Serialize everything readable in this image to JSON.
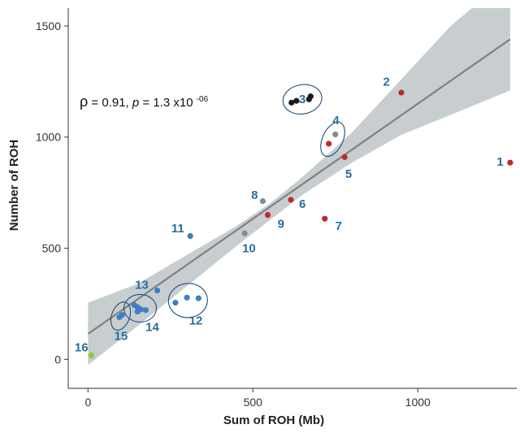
{
  "chart_data": {
    "type": "scatter",
    "xlabel": "Sum of ROH (Mb)",
    "ylabel": "Number of ROH",
    "xlim": [
      -60,
      1300
    ],
    "ylim": [
      -130,
      1580
    ],
    "xticks": [
      0,
      500,
      1000
    ],
    "yticks": [
      0,
      500,
      1000,
      1500
    ],
    "grid": false,
    "legend": "none",
    "annotation": {
      "rho_symbol": "ρ",
      "rho_text": " = 0.91, ",
      "p_symbol": "p",
      "p_text": " = 1.3 x10",
      "p_exponent": "-06"
    },
    "regression": {
      "line": [
        [
          0,
          115
        ],
        [
          1280,
          1440
        ]
      ],
      "band_upper": [
        [
          0,
          255
        ],
        [
          150,
          340
        ],
        [
          300,
          470
        ],
        [
          450,
          600
        ],
        [
          550,
          700
        ],
        [
          650,
          820
        ],
        [
          800,
          1020
        ],
        [
          950,
          1260
        ],
        [
          1100,
          1500
        ],
        [
          1280,
          1725
        ]
      ],
      "band_lower": [
        [
          0,
          -25
        ],
        [
          150,
          150
        ],
        [
          300,
          330
        ],
        [
          450,
          510
        ],
        [
          550,
          625
        ],
        [
          650,
          740
        ],
        [
          800,
          885
        ],
        [
          950,
          1010
        ],
        [
          1100,
          1100
        ],
        [
          1280,
          1210
        ]
      ],
      "line_color": "#808080",
      "band_color": "#c5cace"
    },
    "colors": {
      "red": "#c0282e",
      "black": "#1a1a1a",
      "gray": "#8a8a8a",
      "blue": "#3b7fc4",
      "green": "#8dc63f"
    },
    "points": [
      {
        "x": 1280,
        "y": 885,
        "color": "red"
      },
      {
        "x": 950,
        "y": 1200,
        "color": "red"
      },
      {
        "x": 617,
        "y": 1155,
        "color": "black"
      },
      {
        "x": 632,
        "y": 1163,
        "color": "black"
      },
      {
        "x": 670,
        "y": 1170,
        "color": "black"
      },
      {
        "x": 675,
        "y": 1183,
        "color": "black"
      },
      {
        "x": 750,
        "y": 1012,
        "color": "gray"
      },
      {
        "x": 730,
        "y": 970,
        "color": "red"
      },
      {
        "x": 778,
        "y": 910,
        "color": "red"
      },
      {
        "x": 615,
        "y": 718,
        "color": "red"
      },
      {
        "x": 530,
        "y": 712,
        "color": "gray"
      },
      {
        "x": 545,
        "y": 650,
        "color": "red"
      },
      {
        "x": 718,
        "y": 633,
        "color": "red"
      },
      {
        "x": 310,
        "y": 555,
        "color": "blue"
      },
      {
        "x": 475,
        "y": 567,
        "color": "gray"
      },
      {
        "x": 210,
        "y": 310,
        "color": "blue"
      },
      {
        "x": 265,
        "y": 255,
        "color": "blue"
      },
      {
        "x": 300,
        "y": 278,
        "color": "blue"
      },
      {
        "x": 335,
        "y": 275,
        "color": "blue"
      },
      {
        "x": 140,
        "y": 245,
        "color": "blue"
      },
      {
        "x": 150,
        "y": 235,
        "color": "blue"
      },
      {
        "x": 160,
        "y": 225,
        "color": "blue"
      },
      {
        "x": 150,
        "y": 215,
        "color": "blue"
      },
      {
        "x": 175,
        "y": 222,
        "color": "blue"
      },
      {
        "x": 95,
        "y": 190,
        "color": "blue"
      },
      {
        "x": 103,
        "y": 200,
        "color": "blue"
      },
      {
        "x": 10,
        "y": 18,
        "color": "green"
      }
    ],
    "groups": [
      {
        "cx": 650,
        "cy": 1170,
        "rx": 48,
        "ry": 36,
        "rot": -10
      },
      {
        "cx": 742,
        "cy": 990,
        "rx": 25,
        "ry": 45,
        "rot": 25
      },
      {
        "cx": 303,
        "cy": 265,
        "rx": 48,
        "ry": 42,
        "rot": -5
      },
      {
        "cx": 158,
        "cy": 230,
        "rx": 40,
        "ry": 34,
        "rot": 0
      },
      {
        "cx": 99,
        "cy": 195,
        "rx": 22,
        "ry": 36,
        "rot": 20
      }
    ],
    "labels": [
      {
        "text": "1",
        "x": 1260,
        "y": 890,
        "anchor": "end"
      },
      {
        "text": "2",
        "x": 905,
        "y": 1250,
        "anchor": "middle"
      },
      {
        "text": "3",
        "x": 650,
        "y": 1170,
        "anchor": "middle"
      },
      {
        "text": "4",
        "x": 752,
        "y": 1075,
        "anchor": "middle"
      },
      {
        "text": "5",
        "x": 790,
        "y": 835,
        "anchor": "middle"
      },
      {
        "text": "6",
        "x": 650,
        "y": 700,
        "anchor": "middle"
      },
      {
        "text": "7",
        "x": 760,
        "y": 600,
        "anchor": "middle"
      },
      {
        "text": "8",
        "x": 505,
        "y": 740,
        "anchor": "middle"
      },
      {
        "text": "9",
        "x": 585,
        "y": 610,
        "anchor": "middle"
      },
      {
        "text": "10",
        "x": 488,
        "y": 500,
        "anchor": "middle"
      },
      {
        "text": "11",
        "x": 272,
        "y": 590,
        "anchor": "middle"
      },
      {
        "text": "12",
        "x": 327,
        "y": 175,
        "anchor": "middle"
      },
      {
        "text": "13",
        "x": 163,
        "y": 335,
        "anchor": "middle"
      },
      {
        "text": "14",
        "x": 195,
        "y": 145,
        "anchor": "middle"
      },
      {
        "text": "15",
        "x": 100,
        "y": 105,
        "anchor": "middle"
      },
      {
        "text": "16",
        "x": -20,
        "y": 55,
        "anchor": "middle"
      }
    ]
  }
}
